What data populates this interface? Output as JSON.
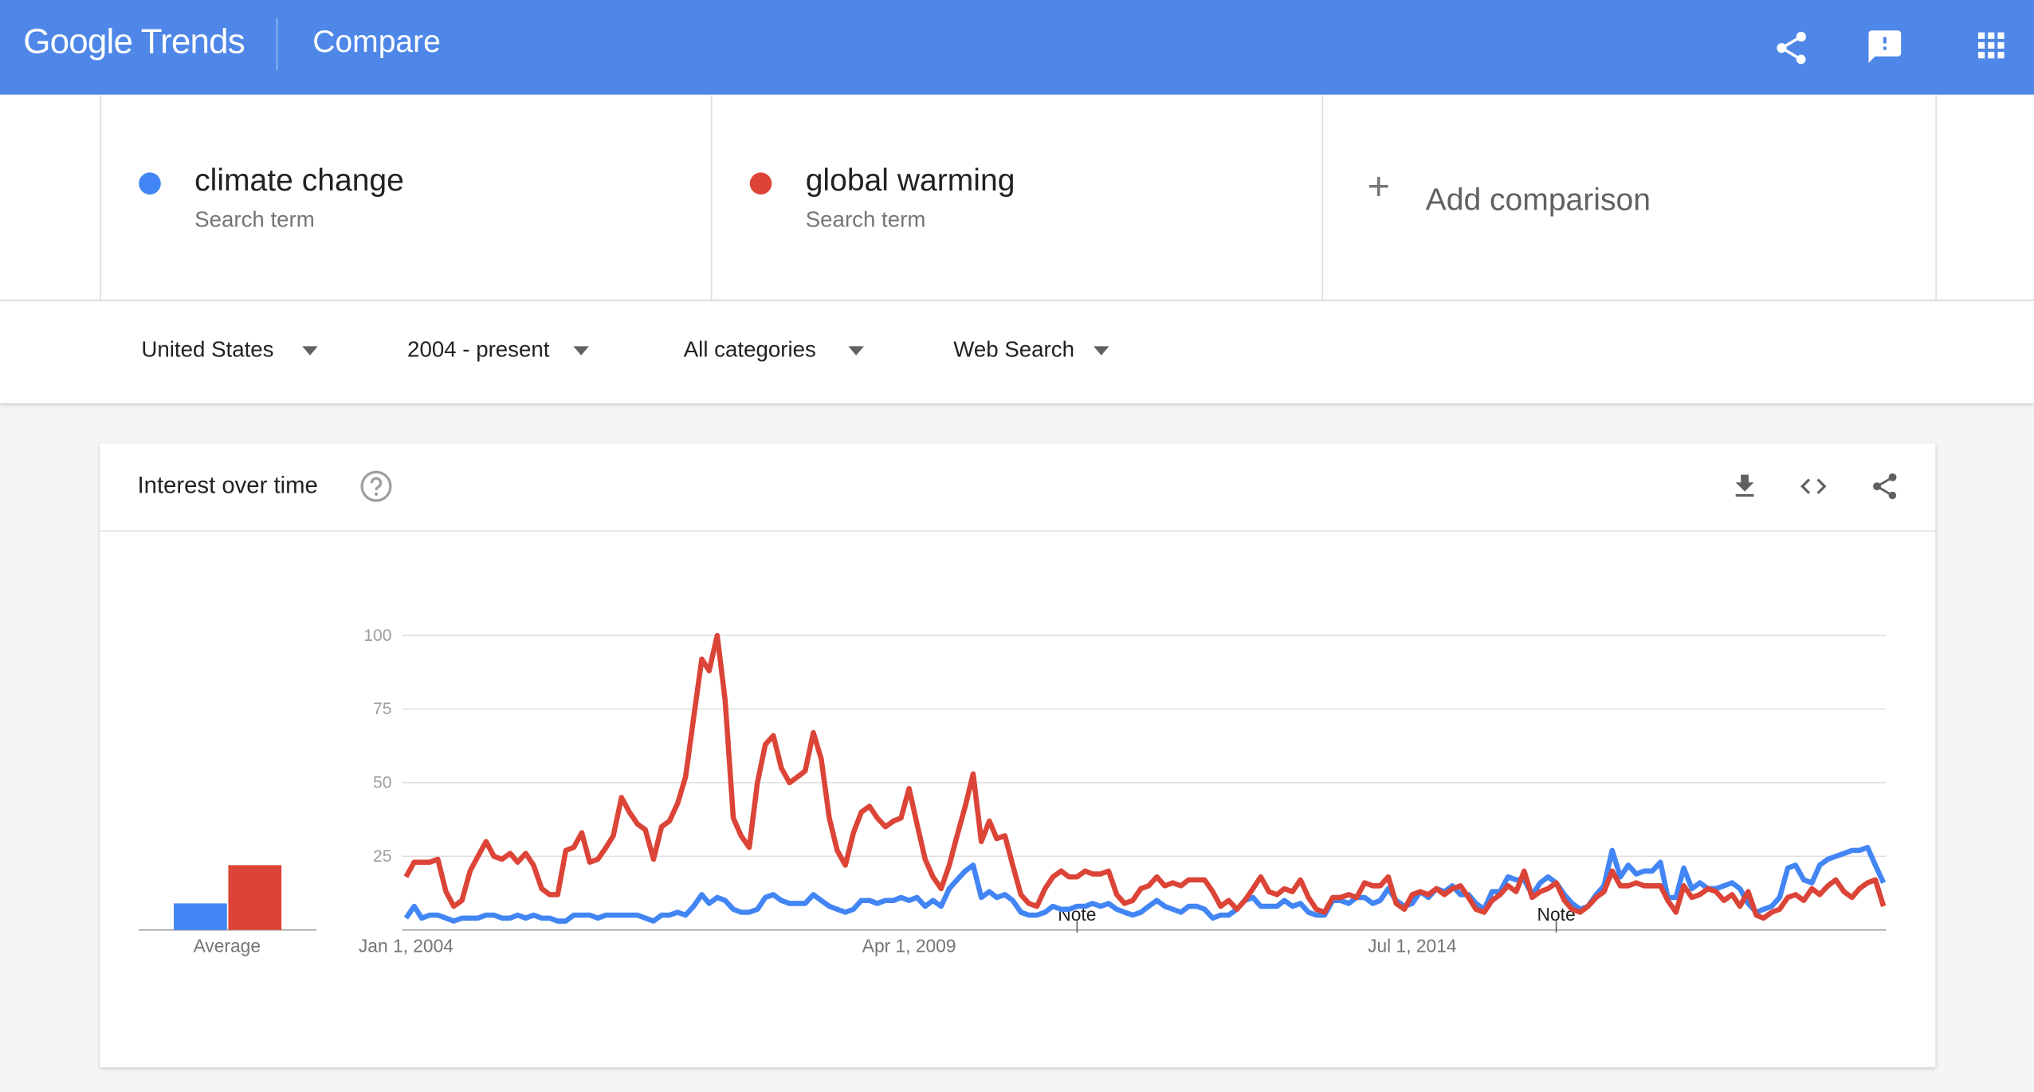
{
  "header": {
    "logo": "Google Trends",
    "title": "Compare"
  },
  "terms": [
    {
      "label": "Search term"
    },
    {
      "label": "Search term"
    }
  ],
  "add_comparison": "Add comparison",
  "filters": [
    "United States",
    "2004 - present",
    "All categories",
    "Web Search"
  ],
  "card": {
    "title": "Interest over time"
  },
  "chart_data": {
    "type": "line",
    "x": [
      "2004-01-01",
      "2004-02-01",
      "2004-03-01",
      "2004-04-01",
      "2004-05-01",
      "2004-06-01",
      "2004-07-01",
      "2004-08-01",
      "2004-09-01",
      "2004-10-01",
      "2004-11-01",
      "2004-12-01",
      "2005-01-01",
      "2005-02-01",
      "2005-03-01",
      "2005-04-01",
      "2005-05-01",
      "2005-06-01",
      "2005-07-01",
      "2005-08-01",
      "2005-09-01",
      "2005-10-01",
      "2005-11-01",
      "2005-12-01",
      "2006-01-01",
      "2006-02-01",
      "2006-03-01",
      "2006-04-01",
      "2006-05-01",
      "2006-06-01",
      "2006-07-01",
      "2006-08-01",
      "2006-09-01",
      "2006-10-01",
      "2006-11-01",
      "2006-12-01",
      "2007-01-01",
      "2007-02-01",
      "2007-03-01",
      "2007-04-01",
      "2007-05-01",
      "2007-06-01",
      "2007-07-01",
      "2007-08-01",
      "2007-09-01",
      "2007-10-01",
      "2007-11-01",
      "2007-12-01",
      "2008-01-01",
      "2008-02-01",
      "2008-03-01",
      "2008-04-01",
      "2008-05-01",
      "2008-06-01",
      "2008-07-01",
      "2008-08-01",
      "2008-09-01",
      "2008-10-01",
      "2008-11-01",
      "2008-12-01",
      "2009-01-01",
      "2009-02-01",
      "2009-03-01",
      "2009-04-01",
      "2009-05-01",
      "2009-06-01",
      "2009-07-01",
      "2009-08-01",
      "2009-09-01",
      "2009-10-01",
      "2009-11-01",
      "2009-12-01",
      "2010-01-01",
      "2010-02-01",
      "2010-03-01",
      "2010-04-01",
      "2010-05-01",
      "2010-06-01",
      "2010-07-01",
      "2010-08-01",
      "2010-09-01",
      "2010-10-01",
      "2010-11-01",
      "2010-12-01",
      "2011-01-01",
      "2011-02-01",
      "2011-03-01",
      "2011-04-01",
      "2011-05-01",
      "2011-06-01",
      "2011-07-01",
      "2011-08-01",
      "2011-09-01",
      "2011-10-01",
      "2011-11-01",
      "2011-12-01",
      "2012-01-01",
      "2012-02-01",
      "2012-03-01",
      "2012-04-01",
      "2012-05-01",
      "2012-06-01",
      "2012-07-01",
      "2012-08-01",
      "2012-09-01",
      "2012-10-01",
      "2012-11-01",
      "2012-12-01",
      "2013-01-01",
      "2013-02-01",
      "2013-03-01",
      "2013-04-01",
      "2013-05-01",
      "2013-06-01",
      "2013-07-01",
      "2013-08-01",
      "2013-09-01",
      "2013-10-01",
      "2013-11-01",
      "2013-12-01",
      "2014-01-01",
      "2014-02-01",
      "2014-03-01",
      "2014-04-01",
      "2014-05-01",
      "2014-06-01",
      "2014-07-01",
      "2014-08-01",
      "2014-09-01",
      "2014-10-01",
      "2014-11-01",
      "2014-12-01",
      "2015-01-01",
      "2015-02-01",
      "2015-03-01",
      "2015-04-01",
      "2015-05-01",
      "2015-06-01",
      "2015-07-01",
      "2015-08-01",
      "2015-09-01",
      "2015-10-01",
      "2015-11-01",
      "2015-12-01",
      "2016-01-01",
      "2016-02-01",
      "2016-03-01",
      "2016-04-01",
      "2016-05-01",
      "2016-06-01",
      "2016-07-01",
      "2016-08-01",
      "2016-09-01",
      "2016-10-01",
      "2016-11-01",
      "2016-12-01",
      "2017-01-01",
      "2017-02-01",
      "2017-03-01",
      "2017-04-01",
      "2017-05-01",
      "2017-06-01",
      "2017-07-01",
      "2017-08-01",
      "2017-09-01",
      "2017-10-01",
      "2017-11-01",
      "2017-12-01",
      "2018-01-01",
      "2018-02-01",
      "2018-03-01",
      "2018-04-01",
      "2018-05-01",
      "2018-06-01",
      "2018-07-01",
      "2018-08-01",
      "2018-09-01",
      "2018-10-01",
      "2018-11-01",
      "2018-12-01",
      "2019-01-01",
      "2019-02-01",
      "2019-03-01",
      "2019-04-01",
      "2019-05-01",
      "2019-06-01"
    ],
    "series": [
      {
        "name": "climate change",
        "color": "#4285f4",
        "average": 9,
        "values": [
          4,
          8,
          4,
          5,
          5,
          4,
          3,
          4,
          4,
          4,
          5,
          5,
          4,
          4,
          5,
          4,
          5,
          4,
          4,
          3,
          3,
          5,
          5,
          5,
          4,
          5,
          5,
          5,
          5,
          5,
          4,
          3,
          5,
          5,
          6,
          5,
          8,
          12,
          9,
          11,
          10,
          7,
          6,
          6,
          7,
          11,
          12,
          10,
          9,
          9,
          9,
          12,
          10,
          8,
          7,
          6,
          7,
          10,
          10,
          9,
          10,
          10,
          11,
          10,
          11,
          8,
          10,
          8,
          14,
          17,
          20,
          22,
          11,
          13,
          11,
          12,
          10,
          6,
          5,
          5,
          6,
          8,
          7,
          7,
          8,
          8,
          9,
          8,
          9,
          7,
          6,
          5,
          6,
          8,
          10,
          8,
          7,
          6,
          8,
          8,
          7,
          4,
          5,
          5,
          7,
          10,
          11,
          8,
          8,
          8,
          10,
          8,
          9,
          6,
          5,
          5,
          10,
          10,
          9,
          11,
          11,
          9,
          10,
          14,
          10,
          8,
          9,
          13,
          11,
          14,
          13,
          15,
          12,
          12,
          9,
          7,
          13,
          13,
          18,
          17,
          17,
          12,
          16,
          18,
          16,
          12,
          9,
          7,
          8,
          12,
          15,
          27,
          18,
          22,
          19,
          20,
          20,
          23,
          11,
          11,
          21,
          14,
          16,
          14,
          14,
          15,
          16,
          14,
          9,
          6,
          7,
          8,
          11,
          21,
          22,
          17,
          16,
          22,
          24,
          25,
          26,
          27,
          27,
          28,
          22,
          16
        ]
      },
      {
        "name": "global warming",
        "color": "#db4437",
        "average": 22,
        "values": [
          18,
          23,
          23,
          23,
          24,
          13,
          8,
          10,
          20,
          25,
          30,
          25,
          24,
          26,
          23,
          26,
          22,
          14,
          12,
          12,
          27,
          28,
          33,
          23,
          24,
          28,
          32,
          45,
          40,
          36,
          34,
          24,
          35,
          37,
          43,
          52,
          72,
          92,
          88,
          100,
          78,
          38,
          32,
          28,
          50,
          63,
          66,
          55,
          50,
          52,
          54,
          67,
          58,
          38,
          27,
          22,
          33,
          40,
          42,
          38,
          35,
          37,
          38,
          48,
          36,
          24,
          18,
          14,
          22,
          32,
          42,
          53,
          30,
          37,
          31,
          32,
          22,
          12,
          9,
          8,
          14,
          18,
          20,
          18,
          18,
          20,
          19,
          19,
          20,
          12,
          9,
          10,
          14,
          15,
          18,
          15,
          16,
          15,
          17,
          17,
          17,
          13,
          8,
          10,
          7,
          10,
          14,
          18,
          13,
          12,
          14,
          13,
          17,
          11,
          7,
          6,
          11,
          11,
          12,
          11,
          16,
          15,
          15,
          18,
          9,
          7,
          12,
          13,
          12,
          14,
          12,
          14,
          15,
          11,
          7,
          6,
          10,
          12,
          15,
          13,
          20,
          11,
          13,
          14,
          16,
          10,
          7,
          6,
          8,
          11,
          13,
          20,
          15,
          15,
          16,
          15,
          15,
          15,
          10,
          6,
          15,
          11,
          12,
          14,
          13,
          10,
          12,
          8,
          13,
          5,
          4,
          6,
          7,
          11,
          12,
          10,
          14,
          12,
          15,
          17,
          13,
          11,
          14,
          16,
          17,
          8
        ]
      }
    ],
    "average_label": "Average",
    "xlim": [
      "2004-01-01",
      "2019-06-01"
    ],
    "xticks": [
      {
        "value": "2004-01-01",
        "label": "Jan 1, 2004"
      },
      {
        "value": "2009-04-01",
        "label": "Apr 1, 2009"
      },
      {
        "value": "2014-07-01",
        "label": "Jul 1, 2014"
      }
    ],
    "ylim": [
      0,
      100
    ],
    "yticks": [
      25,
      50,
      75,
      100
    ],
    "grid": true,
    "annotations": [
      {
        "x": "2011-01-01",
        "text": "Note"
      },
      {
        "x": "2016-01-01",
        "text": "Note"
      }
    ]
  }
}
